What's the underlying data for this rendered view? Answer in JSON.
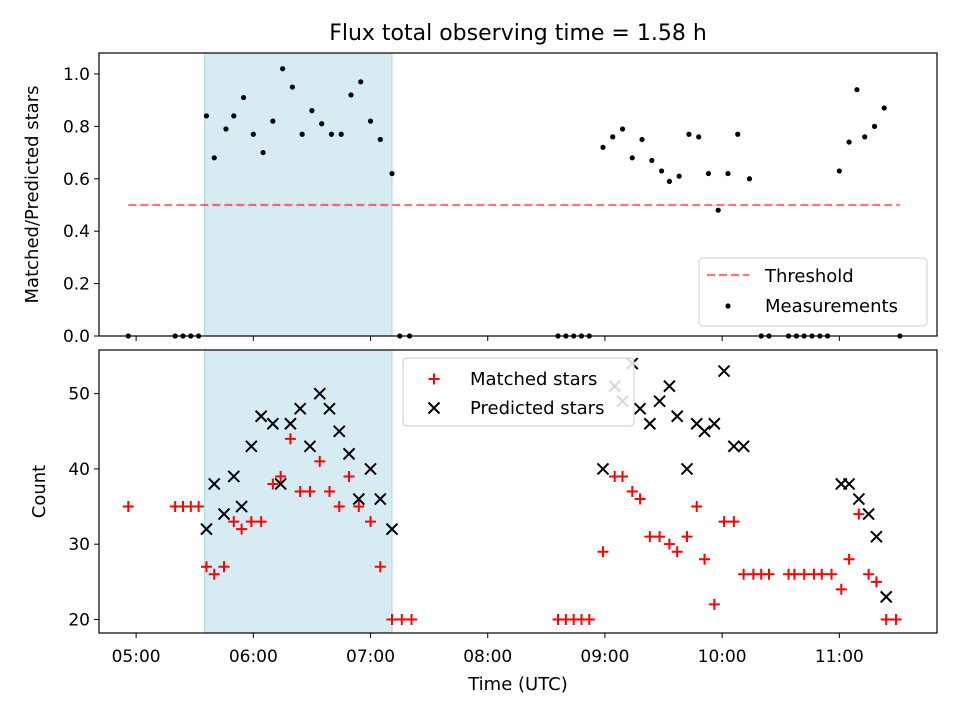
{
  "title": "Flux total observing time = 1.58 h",
  "xlabel": "Time (UTC)",
  "x_ticks": [
    "05:00",
    "06:00",
    "07:00",
    "08:00",
    "09:00",
    "10:00",
    "11:00"
  ],
  "colors": {
    "shade": "#add8e6",
    "threshold": "#ff0000",
    "measurements": "#000000",
    "matched": "#ff0000",
    "predicted": "#000000"
  },
  "chart_data": [
    {
      "type": "scatter",
      "ylabel": "Matched/Predicted stars",
      "xlim": [
        "04:41",
        "11:50"
      ],
      "ylim": [
        0,
        1.08
      ],
      "y_ticks": [
        "0.0",
        "0.2",
        "0.4",
        "0.6",
        "0.8",
        "1.0"
      ],
      "shaded_span": [
        "05:35",
        "07:11"
      ],
      "legend": {
        "placement": "lower-right",
        "entries": [
          "Threshold",
          "Measurements"
        ]
      },
      "threshold": {
        "name": "Threshold",
        "value": 0.5,
        "x_range": [
          "04:56",
          "11:31"
        ]
      },
      "series": [
        {
          "name": "Measurements",
          "points": [
            [
              "04:56",
              0
            ],
            [
              "05:20",
              0
            ],
            [
              "05:24",
              0
            ],
            [
              "05:28",
              0
            ],
            [
              "05:32",
              0
            ],
            [
              "05:36",
              0.84
            ],
            [
              "05:40",
              0.68
            ],
            [
              "05:46",
              0.79
            ],
            [
              "05:50",
              0.84
            ],
            [
              "05:55",
              0.91
            ],
            [
              "06:00",
              0.77
            ],
            [
              "06:05",
              0.7
            ],
            [
              "06:10",
              0.82
            ],
            [
              "06:15",
              1.02
            ],
            [
              "06:20",
              0.95
            ],
            [
              "06:25",
              0.77
            ],
            [
              "06:30",
              0.86
            ],
            [
              "06:35",
              0.81
            ],
            [
              "06:40",
              0.77
            ],
            [
              "06:45",
              0.77
            ],
            [
              "06:50",
              0.92
            ],
            [
              "06:55",
              0.97
            ],
            [
              "07:00",
              0.82
            ],
            [
              "07:05",
              0.75
            ],
            [
              "07:11",
              0.62
            ],
            [
              "07:15",
              0
            ],
            [
              "07:20",
              0
            ],
            [
              "08:36",
              0
            ],
            [
              "08:40",
              0
            ],
            [
              "08:44",
              0
            ],
            [
              "08:48",
              0
            ],
            [
              "08:52",
              0
            ],
            [
              "08:59",
              0.72
            ],
            [
              "09:04",
              0.76
            ],
            [
              "09:09",
              0.79
            ],
            [
              "09:14",
              0.68
            ],
            [
              "09:19",
              0.75
            ],
            [
              "09:24",
              0.67
            ],
            [
              "09:29",
              0.63
            ],
            [
              "09:33",
              0.59
            ],
            [
              "09:38",
              0.61
            ],
            [
              "09:43",
              0.77
            ],
            [
              "09:48",
              0.76
            ],
            [
              "09:53",
              0.62
            ],
            [
              "09:58",
              0.48
            ],
            [
              "10:03",
              0.62
            ],
            [
              "10:08",
              0.77
            ],
            [
              "10:14",
              0.6
            ],
            [
              "10:20",
              0
            ],
            [
              "10:24",
              0
            ],
            [
              "10:34",
              0
            ],
            [
              "10:38",
              0
            ],
            [
              "10:42",
              0
            ],
            [
              "10:46",
              0
            ],
            [
              "10:50",
              0
            ],
            [
              "10:54",
              0
            ],
            [
              "11:00",
              0.63
            ],
            [
              "11:05",
              0.74
            ],
            [
              "11:09",
              0.94
            ],
            [
              "11:13",
              0.76
            ],
            [
              "11:18",
              0.8
            ],
            [
              "11:23",
              0.87
            ],
            [
              "11:31",
              0
            ]
          ]
        }
      ]
    },
    {
      "type": "scatter",
      "ylabel": "Count",
      "xlim": [
        "04:41",
        "11:50"
      ],
      "ylim": [
        18.2,
        55.8
      ],
      "y_ticks": [
        "20",
        "30",
        "40",
        "50"
      ],
      "shaded_span": [
        "05:35",
        "07:11"
      ],
      "legend": {
        "placement": "top-center",
        "entries": [
          "Matched stars",
          "Predicted stars"
        ]
      },
      "series": [
        {
          "name": "Matched stars",
          "marker": "plus",
          "points": [
            [
              "04:56",
              35
            ],
            [
              "05:20",
              35
            ],
            [
              "05:24",
              35
            ],
            [
              "05:28",
              35
            ],
            [
              "05:32",
              35
            ],
            [
              "05:36",
              27
            ],
            [
              "05:40",
              26
            ],
            [
              "05:45",
              27
            ],
            [
              "05:50",
              33
            ],
            [
              "05:54",
              32
            ],
            [
              "05:59",
              33
            ],
            [
              "06:04",
              33
            ],
            [
              "06:10",
              38
            ],
            [
              "06:14",
              39
            ],
            [
              "06:19",
              44
            ],
            [
              "06:24",
              37
            ],
            [
              "06:29",
              37
            ],
            [
              "06:34",
              41
            ],
            [
              "06:39",
              37
            ],
            [
              "06:44",
              35
            ],
            [
              "06:49",
              39
            ],
            [
              "06:54",
              35
            ],
            [
              "07:00",
              33
            ],
            [
              "07:05",
              27
            ],
            [
              "07:11",
              20
            ],
            [
              "07:16",
              20
            ],
            [
              "07:21",
              20
            ],
            [
              "08:36",
              20
            ],
            [
              "08:40",
              20
            ],
            [
              "08:44",
              20
            ],
            [
              "08:48",
              20
            ],
            [
              "08:52",
              20
            ],
            [
              "08:59",
              29
            ],
            [
              "09:05",
              39
            ],
            [
              "09:09",
              39
            ],
            [
              "09:14",
              37
            ],
            [
              "09:18",
              36
            ],
            [
              "09:23",
              31
            ],
            [
              "09:28",
              31
            ],
            [
              "09:33",
              30
            ],
            [
              "09:37",
              29
            ],
            [
              "09:42",
              31
            ],
            [
              "09:47",
              35
            ],
            [
              "09:51",
              28
            ],
            [
              "09:56",
              22
            ],
            [
              "10:01",
              33
            ],
            [
              "10:06",
              33
            ],
            [
              "10:11",
              26
            ],
            [
              "10:16",
              26
            ],
            [
              "10:20",
              26
            ],
            [
              "10:24",
              26
            ],
            [
              "10:34",
              26
            ],
            [
              "10:37",
              26
            ],
            [
              "10:42",
              26
            ],
            [
              "10:47",
              26
            ],
            [
              "10:51",
              26
            ],
            [
              "10:56",
              26
            ],
            [
              "11:01",
              24
            ],
            [
              "11:05",
              28
            ],
            [
              "11:10",
              34
            ],
            [
              "11:15",
              26
            ],
            [
              "11:19",
              25
            ],
            [
              "11:24",
              20
            ],
            [
              "11:29",
              20
            ]
          ]
        },
        {
          "name": "Predicted stars",
          "marker": "x",
          "points": [
            [
              "05:36",
              32
            ],
            [
              "05:40",
              38
            ],
            [
              "05:45",
              34
            ],
            [
              "05:50",
              39
            ],
            [
              "05:54",
              35
            ],
            [
              "05:59",
              43
            ],
            [
              "06:04",
              47
            ],
            [
              "06:10",
              46
            ],
            [
              "06:14",
              38
            ],
            [
              "06:19",
              46
            ],
            [
              "06:24",
              48
            ],
            [
              "06:29",
              43
            ],
            [
              "06:34",
              50
            ],
            [
              "06:39",
              48
            ],
            [
              "06:44",
              45
            ],
            [
              "06:49",
              42
            ],
            [
              "06:54",
              36
            ],
            [
              "07:00",
              40
            ],
            [
              "07:05",
              36
            ],
            [
              "07:11",
              32
            ],
            [
              "08:59",
              40
            ],
            [
              "09:05",
              51
            ],
            [
              "09:09",
              49
            ],
            [
              "09:14",
              54
            ],
            [
              "09:18",
              48
            ],
            [
              "09:23",
              46
            ],
            [
              "09:28",
              49
            ],
            [
              "09:33",
              51
            ],
            [
              "09:37",
              47
            ],
            [
              "09:42",
              40
            ],
            [
              "09:47",
              46
            ],
            [
              "09:51",
              45
            ],
            [
              "09:56",
              46
            ],
            [
              "10:01",
              53
            ],
            [
              "10:06",
              43
            ],
            [
              "10:11",
              43
            ],
            [
              "11:01",
              38
            ],
            [
              "11:05",
              38
            ],
            [
              "11:10",
              36
            ],
            [
              "11:15",
              34
            ],
            [
              "11:19",
              31
            ],
            [
              "11:24",
              23
            ]
          ]
        }
      ]
    }
  ]
}
